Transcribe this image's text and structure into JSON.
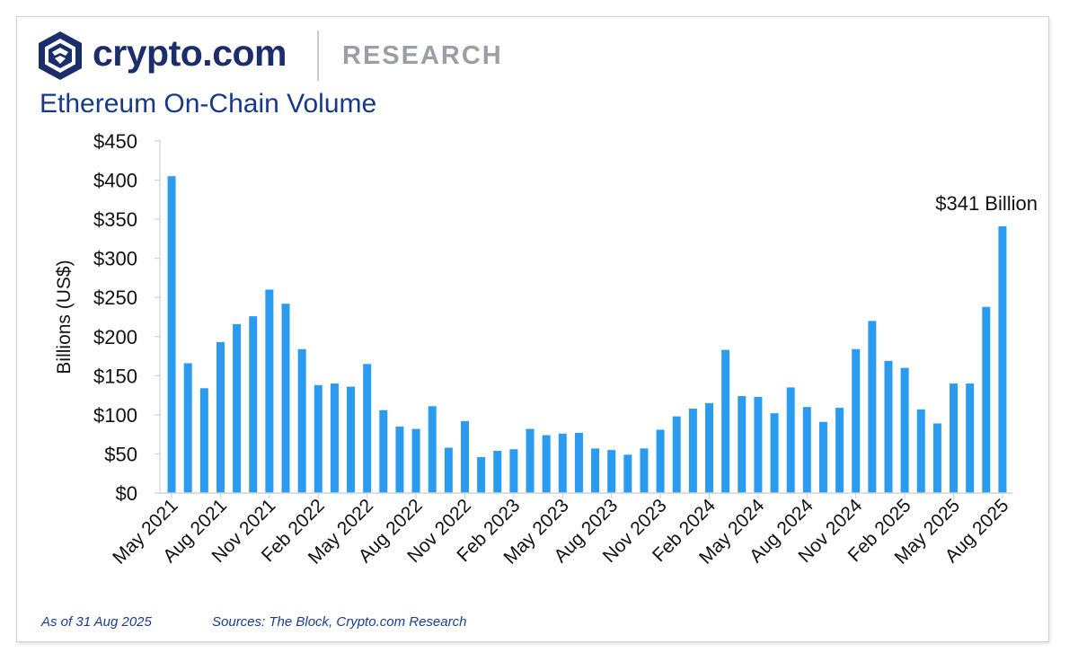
{
  "header": {
    "brand": "crypto.com",
    "division": "RESEARCH",
    "logo_icon": "lion-shield-icon"
  },
  "colors": {
    "bar": "#2b9bf0",
    "brand_navy": "#1b2d6b",
    "title_blue": "#163a8a",
    "axis": "#d0d4da",
    "grey": "#9b9fa5"
  },
  "footer": {
    "as_of": "As of 31 Aug 2025",
    "sources": "Sources: The Block, Crypto.com Research"
  },
  "chart_data": {
    "type": "bar",
    "title": "Ethereum On-Chain Volume",
    "xlabel": "",
    "ylabel": "Billions (US$)",
    "ylim": [
      0,
      450
    ],
    "yticks": [
      0,
      50,
      100,
      150,
      200,
      250,
      300,
      350,
      400,
      450
    ],
    "ytick_labels": [
      "$0",
      "$50",
      "$100",
      "$150",
      "$200",
      "$250",
      "$300",
      "$350",
      "$400",
      "$450"
    ],
    "categories": [
      "May 2021",
      "Jun 2021",
      "Jul 2021",
      "Aug 2021",
      "Sep 2021",
      "Oct 2021",
      "Nov 2021",
      "Dec 2021",
      "Jan 2022",
      "Feb 2022",
      "Mar 2022",
      "Apr 2022",
      "May 2022",
      "Jun 2022",
      "Jul 2022",
      "Aug 2022",
      "Sep 2022",
      "Oct 2022",
      "Nov 2022",
      "Dec 2022",
      "Jan 2023",
      "Feb 2023",
      "Mar 2023",
      "Apr 2023",
      "May 2023",
      "Jun 2023",
      "Jul 2023",
      "Aug 2023",
      "Sep 2023",
      "Oct 2023",
      "Nov 2023",
      "Dec 2023",
      "Jan 2024",
      "Feb 2024",
      "Mar 2024",
      "Apr 2024",
      "May 2024",
      "Jun 2024",
      "Jul 2024",
      "Aug 2024",
      "Sep 2024",
      "Oct 2024",
      "Nov 2024",
      "Dec 2024",
      "Jan 2025",
      "Feb 2025",
      "Mar 2025",
      "Apr 2025",
      "May 2025",
      "Jun 2025",
      "Jul 2025",
      "Aug 2025"
    ],
    "tick_labels": [
      "May 2021",
      "Aug 2021",
      "Nov 2021",
      "Feb 2022",
      "May 2022",
      "Aug 2022",
      "Nov 2022",
      "Feb 2023",
      "May 2023",
      "Aug 2023",
      "Nov 2023",
      "Feb 2024",
      "May 2024",
      "Aug 2024",
      "Nov 2024",
      "Feb 2025",
      "May 2025",
      "Aug 2025"
    ],
    "values": [
      405,
      166,
      134,
      193,
      216,
      226,
      260,
      242,
      184,
      138,
      140,
      136,
      165,
      106,
      85,
      82,
      111,
      58,
      92,
      46,
      54,
      56,
      82,
      74,
      76,
      77,
      57,
      55,
      49,
      57,
      81,
      98,
      108,
      115,
      183,
      124,
      123,
      102,
      135,
      110,
      91,
      109,
      184,
      220,
      169,
      160,
      107,
      89,
      140,
      140,
      238,
      341
    ],
    "annotation": {
      "text": "$341 Billion",
      "category": "Aug 2025"
    }
  }
}
